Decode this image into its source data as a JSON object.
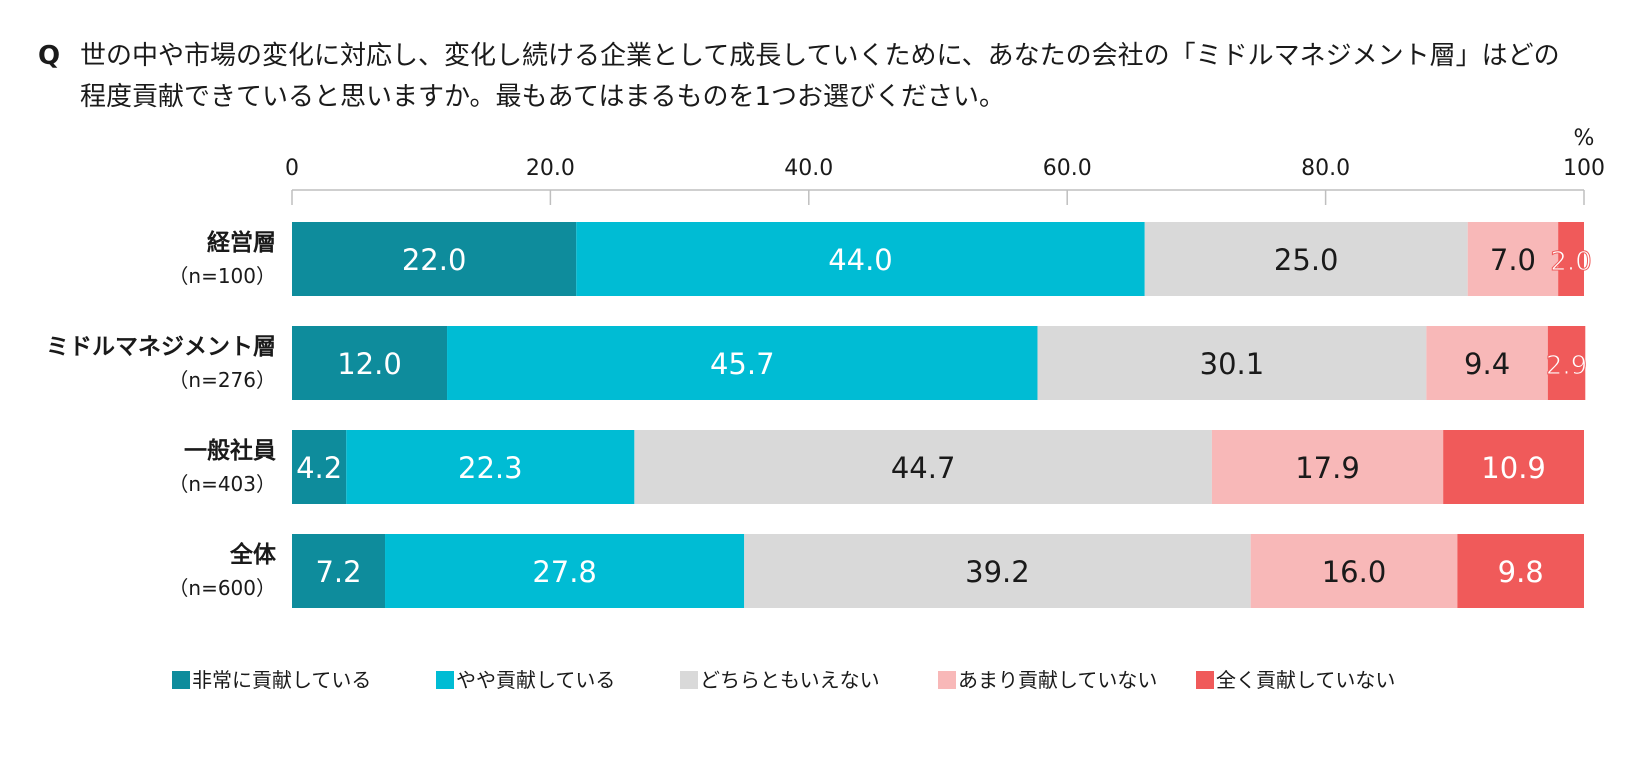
{
  "question": {
    "mark": "Q",
    "text": "世の中や市場の変化に対応し、変化し続ける企業として成長していくために、あなたの会社の「ミドルマネジメント層」はどの程度貢献できていると思いますか。最もあてはまるものを1つお選びください。"
  },
  "chart_data": {
    "type": "bar",
    "orientation": "horizontal",
    "stacked": true,
    "unit": "%",
    "xlim": [
      0,
      100
    ],
    "x_ticks": [
      "0",
      "20.0",
      "40.0",
      "60.0",
      "80.0",
      "100"
    ],
    "categories": [
      {
        "label": "経営層",
        "n": "（n=100）"
      },
      {
        "label": "ミドルマネジメント層",
        "n": "（n=276）"
      },
      {
        "label": "一般社員",
        "n": "（n=403）"
      },
      {
        "label": "全体",
        "n": "（n=600）"
      }
    ],
    "series": [
      {
        "name": "非常に貢献している",
        "color": "#0e8c9c",
        "label_color": "#ffffff",
        "values": [
          22.0,
          12.0,
          4.2,
          7.2
        ],
        "labels": [
          "22.0",
          "12.0",
          "4.2",
          "7.2"
        ]
      },
      {
        "name": "やや貢献している",
        "color": "#00bcd4",
        "label_color": "#ffffff",
        "values": [
          44.0,
          45.7,
          22.3,
          27.8
        ],
        "labels": [
          "44.0",
          "45.7",
          "22.3",
          "27.8"
        ]
      },
      {
        "name": "どちらともいえない",
        "color": "#d9d9d9",
        "label_color": "#1a1a1a",
        "values": [
          25.0,
          30.1,
          44.7,
          39.2
        ],
        "labels": [
          "25.0",
          "30.1",
          "44.7",
          "39.2"
        ]
      },
      {
        "name": "あまり貢献していない",
        "color": "#f8b8b8",
        "label_color": "#1a1a1a",
        "values": [
          7.0,
          9.4,
          17.9,
          16.0
        ],
        "labels": [
          "7.0",
          "9.4",
          "17.9",
          "16.0"
        ]
      },
      {
        "name": "全く貢献していない",
        "color": "#f05a5a",
        "label_color": "#ffffff",
        "values": [
          2.0,
          2.9,
          10.9,
          9.8
        ],
        "labels": [
          "2.0",
          "2.9",
          "10.9",
          "9.8"
        ]
      }
    ],
    "legend_position": "bottom"
  }
}
